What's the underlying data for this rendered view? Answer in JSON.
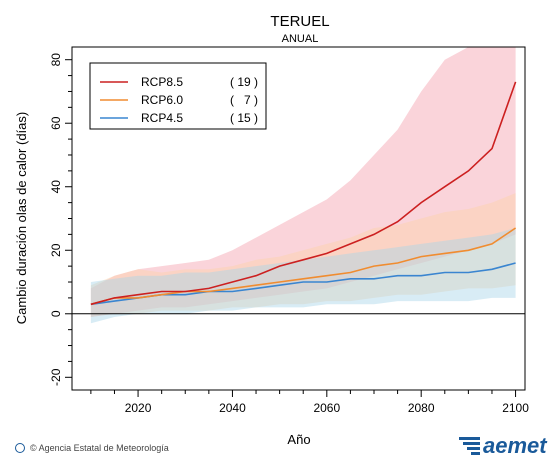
{
  "chart_data": {
    "type": "line",
    "title": "TERUEL",
    "subtitle": "ANUAL",
    "xlabel": "Año",
    "ylabel": "Cambio duración olas de calor (días)",
    "xlim": [
      2006,
      2102
    ],
    "ylim": [
      -24,
      84
    ],
    "x_ticks": [
      2020,
      2040,
      2060,
      2080,
      2100
    ],
    "y_ticks": [
      -20,
      0,
      20,
      40,
      60,
      80
    ],
    "reference_line": 0,
    "grid": false,
    "legend_position": "top-left",
    "x": [
      2010,
      2015,
      2020,
      2025,
      2030,
      2035,
      2040,
      2045,
      2050,
      2055,
      2060,
      2065,
      2070,
      2075,
      2080,
      2085,
      2090,
      2095,
      2100
    ],
    "series": [
      {
        "name": "RCP8.5",
        "count": "( 19 )",
        "color": "#cc2020",
        "band_color": "#f5a0ac",
        "values": [
          3,
          5,
          6,
          7,
          7,
          8,
          10,
          12,
          15,
          17,
          19,
          22,
          25,
          29,
          35,
          40,
          45,
          52,
          73
        ],
        "lower": [
          -1,
          0,
          1,
          2,
          2,
          3,
          4,
          5,
          6,
          7,
          8,
          10,
          12,
          14,
          16,
          18,
          20,
          22,
          25
        ],
        "upper": [
          8,
          12,
          14,
          15,
          16,
          17,
          20,
          24,
          28,
          32,
          36,
          42,
          50,
          58,
          70,
          80,
          85,
          85,
          85
        ]
      },
      {
        "name": "RCP6.0",
        "count": "(   7 )",
        "color": "#f08c30",
        "band_color": "#fcd2a8",
        "values": [
          3,
          5,
          5,
          6,
          7,
          7,
          8,
          9,
          10,
          11,
          12,
          13,
          15,
          16,
          18,
          19,
          20,
          22,
          27
        ],
        "lower": [
          -1,
          0,
          0,
          1,
          1,
          1,
          2,
          2,
          3,
          3,
          4,
          4,
          5,
          6,
          6,
          7,
          8,
          8,
          9
        ],
        "upper": [
          9,
          12,
          14,
          13,
          14,
          14,
          15,
          17,
          18,
          20,
          22,
          24,
          27,
          28,
          30,
          32,
          33,
          35,
          38
        ]
      },
      {
        "name": "RCP4.5",
        "count": "( 15 )",
        "color": "#3a85d0",
        "band_color": "#a8d4e8",
        "values": [
          3,
          4,
          5,
          6,
          6,
          7,
          7,
          8,
          9,
          10,
          10,
          11,
          11,
          12,
          12,
          13,
          13,
          14,
          16
        ],
        "lower": [
          -3,
          -1,
          0,
          0,
          0,
          1,
          1,
          2,
          2,
          2,
          3,
          3,
          3,
          4,
          4,
          4,
          4,
          5,
          5
        ],
        "upper": [
          10,
          11,
          12,
          12,
          13,
          13,
          14,
          15,
          16,
          17,
          18,
          19,
          20,
          21,
          22,
          23,
          24,
          25,
          27
        ]
      }
    ]
  },
  "footer": {
    "credit": "© Agencia Estatal de Meteorología",
    "brand": "aemet"
  }
}
